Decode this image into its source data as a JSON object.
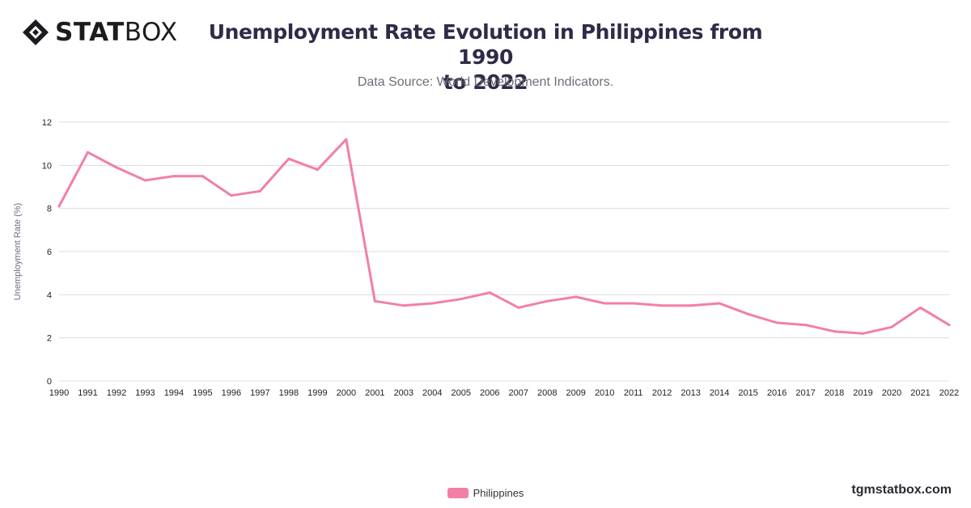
{
  "header": {
    "logo_bold": "STAT",
    "logo_light": "BOX",
    "title_line1": "Unemployment Rate Evolution in Philippines from 1990",
    "title_line2": "to 2022",
    "subtitle": "Data Source: World Development Indicators."
  },
  "footer": {
    "brand": "tgmstatbox.com"
  },
  "colors": {
    "series": "#f27fa7",
    "grid": "#dcdcdc",
    "tick_text": "#222222",
    "axis_label": "#6e6b80"
  },
  "chart_data": {
    "type": "line",
    "title": "Unemployment Rate Evolution in Philippines from 1990 to 2022",
    "subtitle": "Data Source: World Development Indicators.",
    "xlabel": "",
    "ylabel": "Unemployment Rate (%)",
    "ylim": [
      0,
      12
    ],
    "yticks": [
      0,
      2,
      4,
      6,
      8,
      10,
      12
    ],
    "grid": true,
    "legend": "bottom-center",
    "categories": [
      "1990",
      "1991",
      "1992",
      "1993",
      "1994",
      "1995",
      "1996",
      "1997",
      "1998",
      "1999",
      "2000",
      "2001",
      "2003",
      "2004",
      "2005",
      "2006",
      "2007",
      "2008",
      "2009",
      "2010",
      "2011",
      "2012",
      "2013",
      "2014",
      "2015",
      "2016",
      "2017",
      "2018",
      "2019",
      "2020",
      "2021",
      "2022"
    ],
    "series": [
      {
        "name": "Philippines",
        "values": [
          8.1,
          10.6,
          9.9,
          9.3,
          9.5,
          9.5,
          8.6,
          8.8,
          10.3,
          9.8,
          11.2,
          3.7,
          3.5,
          3.6,
          3.8,
          4.1,
          3.4,
          3.7,
          3.9,
          3.6,
          3.6,
          3.5,
          3.5,
          3.6,
          3.1,
          2.7,
          2.6,
          2.3,
          2.2,
          2.5,
          3.4,
          2.6
        ]
      }
    ]
  }
}
